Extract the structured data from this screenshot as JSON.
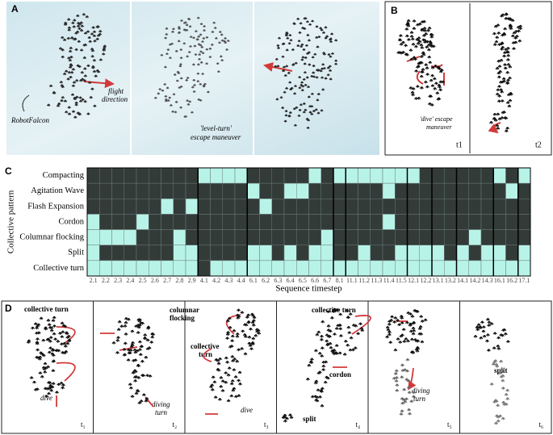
{
  "panel_a": {
    "label": "A",
    "flight": "flight",
    "direction": "direction",
    "falcon": "RobotFalcon",
    "escape1": "'level-turn'",
    "escape2": "escape maneuver"
  },
  "panel_b": {
    "label": "B",
    "escape1": "'dive' escape",
    "escape2": "maneuver",
    "t1": "t1",
    "t2": "t2"
  },
  "chart_data": {
    "type": "heatmap",
    "panel_label": "C",
    "ylabel": "Collective pattern",
    "xlabel": "Sequence timestep",
    "rows": [
      "Compacting",
      "Agitation Wave",
      "Flash Expansion",
      "Cordon",
      "Columnar flocking",
      "Split",
      "Collective turn"
    ],
    "columns": [
      "2.1",
      "2.2",
      "2.3",
      "2.4",
      "2.5",
      "2.6",
      "2.7",
      "2.8",
      "2.9",
      "4.1",
      "4.2",
      "4.3",
      "4.4",
      "6.1",
      "6.2",
      "6.3",
      "6.4",
      "6.5",
      "6.6",
      "6.7",
      "8.1",
      "11.1",
      "11.2",
      "11.3",
      "11.4",
      "11.5",
      "12.1",
      "12.2",
      "13.1",
      "13.2",
      "14.1",
      "14.2",
      "14.3",
      "16.1",
      "16.2",
      "17.1"
    ],
    "values": [
      [
        0,
        0,
        0,
        0,
        0,
        0,
        0,
        0,
        0,
        1,
        1,
        1,
        1,
        0,
        0,
        0,
        0,
        0,
        1,
        0,
        1,
        1,
        1,
        1,
        1,
        1,
        1,
        0,
        0,
        0,
        0,
        0,
        0,
        1,
        0,
        1
      ],
      [
        0,
        0,
        0,
        0,
        0,
        0,
        0,
        0,
        0,
        0,
        0,
        0,
        0,
        1,
        0,
        0,
        1,
        1,
        0,
        0,
        0,
        0,
        0,
        0,
        1,
        0,
        0,
        0,
        0,
        0,
        0,
        0,
        0,
        0,
        1,
        0
      ],
      [
        0,
        0,
        0,
        0,
        0,
        0,
        1,
        0,
        1,
        0,
        0,
        0,
        0,
        0,
        1,
        0,
        0,
        0,
        0,
        0,
        0,
        0,
        0,
        0,
        0,
        0,
        0,
        0,
        0,
        0,
        0,
        0,
        0,
        0,
        0,
        0
      ],
      [
        1,
        0,
        0,
        0,
        1,
        0,
        0,
        0,
        0,
        0,
        0,
        0,
        0,
        0,
        0,
        0,
        0,
        0,
        0,
        0,
        0,
        0,
        0,
        0,
        1,
        0,
        0,
        0,
        0,
        0,
        0,
        0,
        0,
        0,
        0,
        0
      ],
      [
        1,
        1,
        1,
        1,
        0,
        0,
        0,
        1,
        0,
        0,
        0,
        0,
        0,
        0,
        0,
        0,
        0,
        0,
        0,
        1,
        0,
        0,
        0,
        0,
        0,
        0,
        0,
        0,
        0,
        0,
        0,
        1,
        0,
        0,
        0,
        0
      ],
      [
        1,
        0,
        0,
        0,
        0,
        0,
        0,
        1,
        1,
        0,
        0,
        0,
        0,
        1,
        1,
        0,
        1,
        0,
        1,
        1,
        0,
        0,
        1,
        0,
        0,
        1,
        1,
        1,
        1,
        0,
        1,
        0,
        1,
        1,
        0,
        1
      ],
      [
        1,
        1,
        1,
        1,
        1,
        1,
        1,
        1,
        1,
        0,
        1,
        1,
        1,
        1,
        1,
        1,
        1,
        1,
        1,
        1,
        1,
        1,
        1,
        1,
        1,
        1,
        1,
        1,
        1,
        1,
        1,
        1,
        1,
        1,
        1,
        1
      ]
    ],
    "colors": {
      "on": "#b8f3e8",
      "off": "#333b39"
    }
  },
  "panel_d": {
    "label": "D",
    "frames": [
      {
        "texts": [
          "collective turn",
          "dive"
        ],
        "time": "t₁"
      },
      {
        "texts": [
          "columnar",
          "flocking",
          "diving",
          "turn"
        ],
        "time": "t₂"
      },
      {
        "texts": [
          "collective",
          "turn",
          "dive"
        ],
        "time": "t₃"
      },
      {
        "texts": [
          "collective turn",
          "cordon",
          "split"
        ],
        "time": "t₄"
      },
      {
        "texts": [
          "diving",
          "turn"
        ],
        "time": "t₅"
      },
      {
        "texts": [
          "split"
        ],
        "time": "t₆"
      }
    ]
  }
}
